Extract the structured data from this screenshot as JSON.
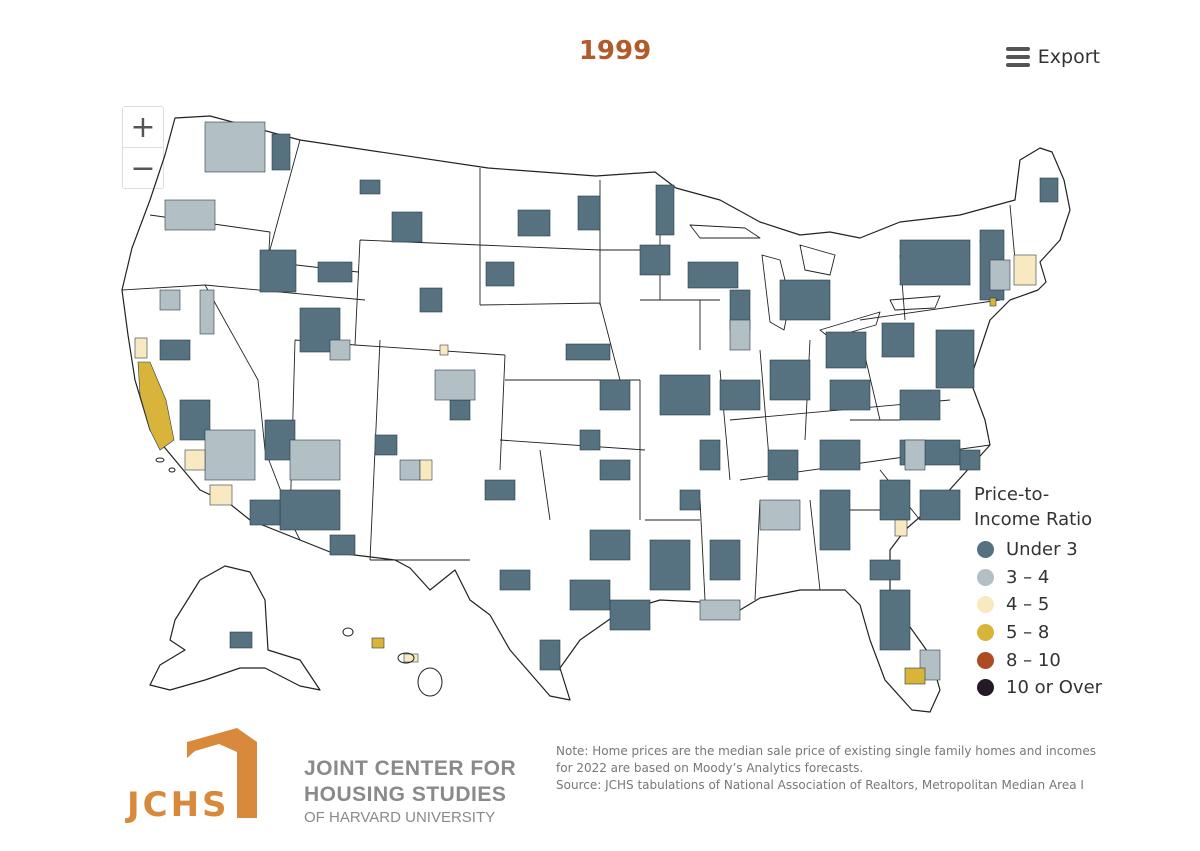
{
  "title": "1999",
  "export": {
    "label": "Export",
    "icon": "hamburger-icon"
  },
  "zoom": {
    "in_label": "+",
    "out_label": "−"
  },
  "legend": {
    "title_line1": "Price-to-",
    "title_line2": "Income Ratio",
    "items": [
      {
        "label": "Under 3",
        "color": "#56717f"
      },
      {
        "label": "3 – 4",
        "color": "#b2c0c6"
      },
      {
        "label": "4 – 5",
        "color": "#f8e9c0"
      },
      {
        "label": "5 – 8",
        "color": "#d8b43a"
      },
      {
        "label": "8 – 10",
        "color": "#ad4b22"
      },
      {
        "label": "10 or Over",
        "color": "#261826"
      }
    ]
  },
  "colors": {
    "land": "#ffffff",
    "border": "#222222",
    "title": "#b35a2a",
    "logo_orange": "#d9893b"
  },
  "logo": {
    "mark": "JCHS",
    "line1": "JOINT CENTER FOR",
    "line2": "HOUSING STUDIES",
    "line3": "OF HARVARD UNIVERSITY"
  },
  "note": {
    "line1": "Note: Home prices are the median sale price of existing single family homes and incomes",
    "line2": "for 2022 are based on Moody’s Analytics forecasts.",
    "line3": "Source: JCHS tabulations of National Association of Realtors, Metropolitan Median Area I"
  }
}
